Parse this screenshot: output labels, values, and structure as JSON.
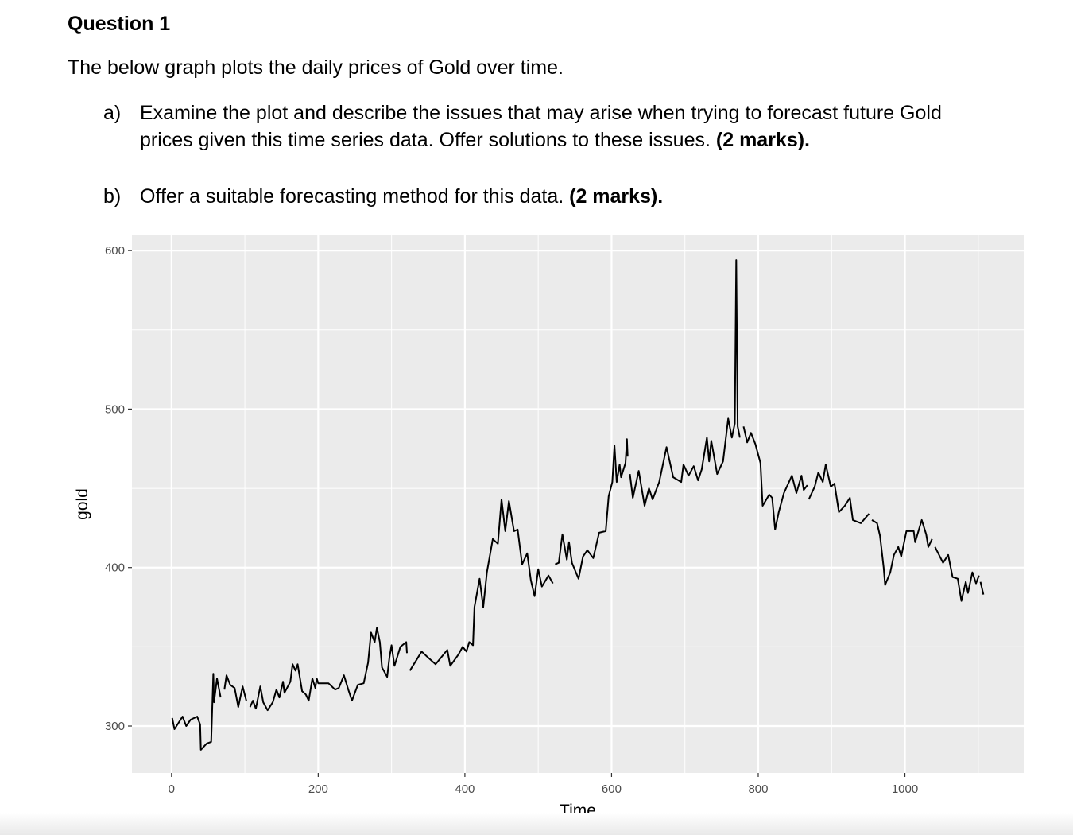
{
  "document": {
    "title": "Question 1",
    "intro": "The below graph plots the daily prices of Gold over time.",
    "items": [
      {
        "label": "a)",
        "text": "Examine the plot and describe the issues that may arise when trying to forecast future Gold prices given this time series data. Offer solutions to these issues. ",
        "marks": "(2 marks)."
      },
      {
        "label": "b)",
        "text": "Offer a suitable forecasting method for this data. ",
        "marks": "(2 marks)."
      }
    ]
  },
  "chart_data": {
    "type": "line",
    "title": "",
    "xlabel": "Time",
    "ylabel": "gold",
    "xlim": [
      -54,
      1162
    ],
    "ylim": [
      270.4,
      609.6
    ],
    "x_ticks": [
      0,
      200,
      400,
      600,
      800,
      1000
    ],
    "y_ticks": [
      300,
      400,
      500,
      600
    ],
    "grid": true,
    "background": "#EBEBEB",
    "line_color": "#000000",
    "series": [
      {
        "x": [
          1,
          4,
          15,
          20,
          26,
          35,
          39,
          40,
          48,
          54,
          57,
          58,
          62,
          67,
          70,
          72,
          75,
          80,
          86,
          91,
          97,
          102,
          105,
          107,
          111,
          115,
          121,
          125,
          131,
          138,
          143,
          147,
          152,
          154,
          162,
          165,
          169,
          172,
          178,
          183,
          187,
          192,
          196,
          198,
          200,
          214,
          223,
          228,
          235,
          241,
          246,
          254,
          262,
          268,
          272,
          277,
          280,
          284,
          287,
          294,
          297,
          300,
          304,
          312,
          320,
          321,
          323,
          325,
          333,
          341,
          348,
          360,
          376,
          380,
          391,
          397,
          402,
          406,
          411,
          413,
          420,
          425,
          430,
          438,
          445,
          450,
          455,
          460,
          467,
          472,
          478,
          485,
          490,
          495,
          500,
          505,
          514,
          520,
          522,
          523,
          528,
          533,
          539,
          542,
          546,
          555,
          561,
          567,
          575,
          583,
          592,
          596,
          601,
          604,
          607,
          611,
          613,
          619,
          621,
          622,
          623,
          625,
          629,
          637,
          645,
          651,
          656,
          665,
          675,
          684,
          695,
          698,
          705,
          712,
          718,
          723,
          730,
          733,
          736,
          744,
          752,
          759,
          764,
          768,
          770,
          772,
          775,
          777,
          780,
          785,
          790,
          796,
          803,
          806,
          815,
          819,
          823,
          828,
          835,
          842,
          846,
          852,
          859,
          862,
          867,
          868,
          869,
          877,
          882,
          888,
          892,
          899,
          904,
          910,
          918,
          925,
          929,
          940,
          951,
          953,
          955,
          962,
          966,
          971,
          973,
          980,
          985,
          991,
          995,
          1002,
          1012,
          1014,
          1023,
          1029,
          1032,
          1037,
          1039,
          1041,
          1052,
          1059,
          1065,
          1072,
          1077,
          1083,
          1086,
          1092,
          1097,
          1101,
          1102,
          1103,
          1107
        ],
        "y": [
          305,
          298,
          306,
          300,
          304,
          306,
          301,
          285,
          289,
          290,
          333,
          315,
          330,
          318,
          null,
          323,
          332,
          326,
          324,
          312,
          325,
          316,
          null,
          312,
          316,
          311,
          325,
          315,
          310,
          315,
          323,
          318,
          328,
          321,
          328,
          339,
          335,
          339,
          322,
          320,
          316,
          330,
          324,
          330,
          327,
          327,
          323,
          324,
          332,
          323,
          316,
          326,
          327,
          340,
          359,
          353,
          362,
          353,
          337,
          331,
          343,
          351,
          338,
          350,
          353,
          346,
          null,
          335,
          341,
          347,
          344,
          339,
          348,
          338,
          345,
          350,
          347,
          353,
          351,
          375,
          393,
          375,
          397,
          418,
          415,
          443,
          423,
          442,
          423,
          424,
          402,
          409,
          392,
          382,
          399,
          388,
          395,
          390,
          null,
          402,
          403,
          421,
          405,
          416,
          403,
          393,
          407,
          411,
          406,
          422,
          423,
          445,
          454,
          477,
          454,
          465,
          457,
          466,
          481,
          470,
          null,
          459,
          444,
          461,
          439,
          450,
          443,
          454,
          476,
          457,
          454,
          465,
          458,
          464,
          455,
          462,
          482,
          467,
          480,
          459,
          467,
          494,
          482,
          491,
          594,
          489,
          482,
          null,
          489,
          479,
          485,
          478,
          466,
          439,
          446,
          444,
          424,
          435,
          447,
          454,
          458,
          447,
          458,
          449,
          452,
          null,
          443,
          451,
          460,
          454,
          465,
          451,
          453,
          435,
          439,
          444,
          430,
          428,
          434,
          null,
          430,
          428,
          420,
          400,
          389,
          397,
          408,
          413,
          407,
          423,
          423,
          416,
          430,
          421,
          413,
          418,
          null,
          413,
          403,
          408,
          394,
          393,
          379,
          391,
          384,
          397,
          390,
          395,
          null,
          391,
          383
        ]
      }
    ]
  }
}
